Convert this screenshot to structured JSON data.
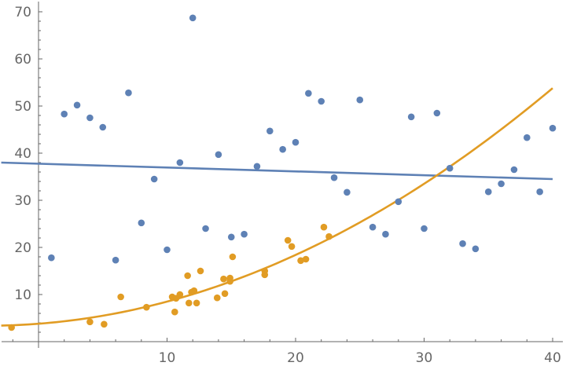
{
  "chart_data": {
    "type": "scatter",
    "title": "",
    "xlabel": "",
    "ylabel": "",
    "xlim": [
      -2.9,
      40.5
    ],
    "ylim": [
      -1.5,
      72
    ],
    "grid": false,
    "legend": null,
    "x_ticks": [
      10,
      20,
      30,
      40
    ],
    "y_ticks": [
      10,
      20,
      30,
      40,
      50,
      60,
      70
    ],
    "colors": {
      "series1": "#5E81B5",
      "series2": "#E19C24",
      "axis": "#666666"
    },
    "series": [
      {
        "name": "series1",
        "kind": "points",
        "color": "#5E81B5",
        "x": [
          1,
          2,
          3,
          4,
          5,
          6,
          7,
          8,
          9,
          10,
          11,
          12,
          13,
          14,
          15,
          16,
          17,
          18,
          19,
          20,
          21,
          22,
          23,
          24,
          25,
          26,
          27,
          28,
          29,
          30,
          31,
          32,
          33,
          34,
          35,
          36,
          37,
          38,
          39,
          40
        ],
        "y": [
          17.8,
          48.3,
          50.2,
          47.5,
          45.5,
          17.3,
          52.8,
          25.2,
          34.5,
          19.5,
          38.0,
          68.7,
          24.0,
          39.7,
          22.2,
          22.8,
          37.2,
          44.7,
          40.8,
          42.3,
          52.7,
          51.0,
          34.8,
          31.7,
          51.3,
          24.3,
          22.8,
          29.7,
          47.7,
          24.0,
          48.5,
          36.8,
          20.8,
          19.7,
          31.8,
          33.5,
          36.5,
          43.3,
          31.8,
          45.3
        ]
      },
      {
        "name": "series1 linear fit",
        "kind": "line",
        "color": "#5E81B5",
        "x": [
          -2.9,
          40
        ],
        "y": [
          38.0,
          34.5
        ]
      },
      {
        "name": "series2",
        "kind": "points",
        "color": "#E19C24",
        "x": [
          -2.1,
          4.0,
          5.1,
          6.4,
          8.4,
          10.4,
          10.6,
          10.7,
          11.0,
          11.6,
          11.7,
          11.9,
          12.1,
          12.3,
          12.6,
          13.9,
          14.4,
          14.5,
          14.9,
          14.9,
          15.1,
          17.6,
          17.6,
          19.4,
          19.7,
          20.4,
          20.8,
          22.2,
          22.6
        ],
        "y": [
          3.0,
          4.2,
          3.7,
          9.5,
          7.3,
          9.5,
          6.3,
          9.2,
          10.0,
          14.0,
          8.2,
          10.5,
          10.8,
          8.2,
          15.0,
          9.3,
          13.3,
          10.2,
          13.5,
          12.8,
          18.0,
          15.0,
          14.2,
          21.5,
          20.2,
          17.2,
          17.5,
          24.3,
          22.3
        ]
      },
      {
        "name": "series2 quadratic fit",
        "kind": "curve",
        "color": "#E19C24",
        "formula": "y = 3.8 + 0.21x + 0.026x^2",
        "coefficients": [
          3.8,
          0.21,
          0.026
        ],
        "x_range": [
          -2.9,
          40
        ]
      }
    ]
  }
}
